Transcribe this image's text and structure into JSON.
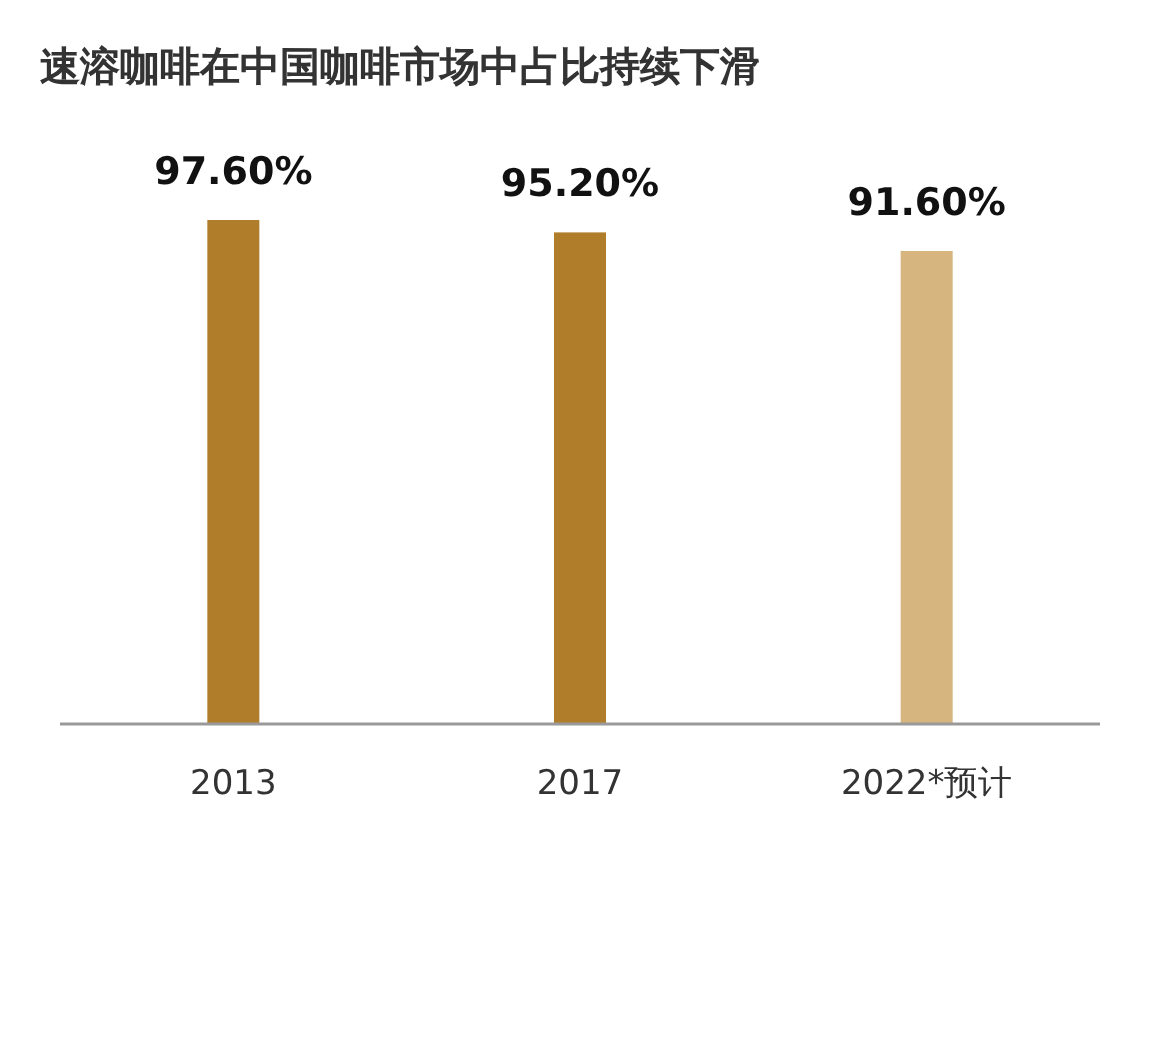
{
  "chart_data": {
    "type": "bar",
    "title": "速溶咖啡在中国咖啡市场中占比持续下滑",
    "categories": [
      "2013",
      "2017",
      "2022*预计"
    ],
    "values": [
      97.6,
      95.2,
      91.6
    ],
    "colors": [
      "#b07d2b",
      "#b07d2b",
      "#d6b57f"
    ],
    "value_labels": [
      "97.60%",
      "95.20%",
      "91.60%"
    ],
    "tick_labels": "x"
  }
}
